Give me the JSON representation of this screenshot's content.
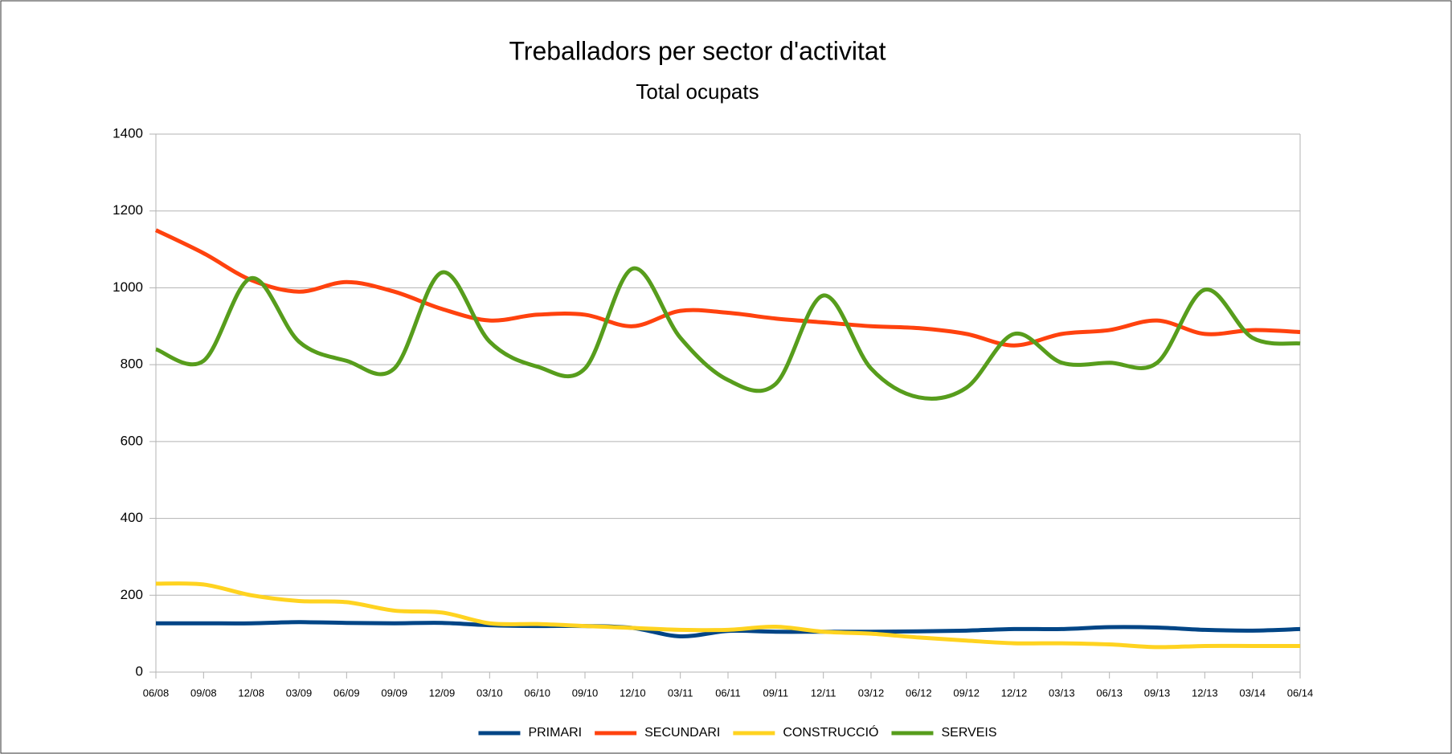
{
  "chart_data": {
    "type": "line",
    "title": "Treballadors per sector d'activitat",
    "subtitle": "Total ocupats",
    "categories": [
      "06/08",
      "09/08",
      "12/08",
      "03/09",
      "06/09",
      "09/09",
      "12/09",
      "03/10",
      "06/10",
      "09/10",
      "12/10",
      "03/11",
      "06/11",
      "09/11",
      "12/11",
      "03/12",
      "06/12",
      "09/12",
      "12/12",
      "03/13",
      "06/13",
      "09/13",
      "12/13",
      "03/14",
      "06/14"
    ],
    "series": [
      {
        "name": "PRIMARI",
        "color": "#004586",
        "values": [
          127,
          127,
          127,
          130,
          128,
          127,
          128,
          122,
          120,
          120,
          115,
          93,
          107,
          105,
          105,
          105,
          106,
          108,
          112,
          112,
          117,
          116,
          110,
          108,
          112
        ]
      },
      {
        "name": "SECUNDARI",
        "color": "#ff420e",
        "values": [
          1150,
          1090,
          1020,
          990,
          1015,
          990,
          945,
          915,
          930,
          930,
          900,
          940,
          935,
          920,
          910,
          900,
          895,
          880,
          850,
          880,
          890,
          915,
          880,
          890,
          885
        ]
      },
      {
        "name": "CONSTRUCCIÓ",
        "color": "#ffd320",
        "values": [
          230,
          228,
          200,
          185,
          182,
          160,
          155,
          127,
          125,
          120,
          115,
          110,
          110,
          118,
          105,
          100,
          90,
          82,
          75,
          75,
          72,
          65,
          68,
          68,
          68
        ]
      },
      {
        "name": "SERVEIS",
        "color": "#579d1c",
        "values": [
          840,
          810,
          1025,
          860,
          810,
          790,
          1040,
          860,
          795,
          790,
          1050,
          870,
          760,
          750,
          980,
          790,
          715,
          740,
          880,
          805,
          805,
          805,
          995,
          870,
          855
        ]
      }
    ],
    "ylim": [
      0,
      1400
    ],
    "yticks": [
      0,
      200,
      400,
      600,
      800,
      1000,
      1200,
      1400
    ],
    "grid": true,
    "legend": "bottom"
  }
}
